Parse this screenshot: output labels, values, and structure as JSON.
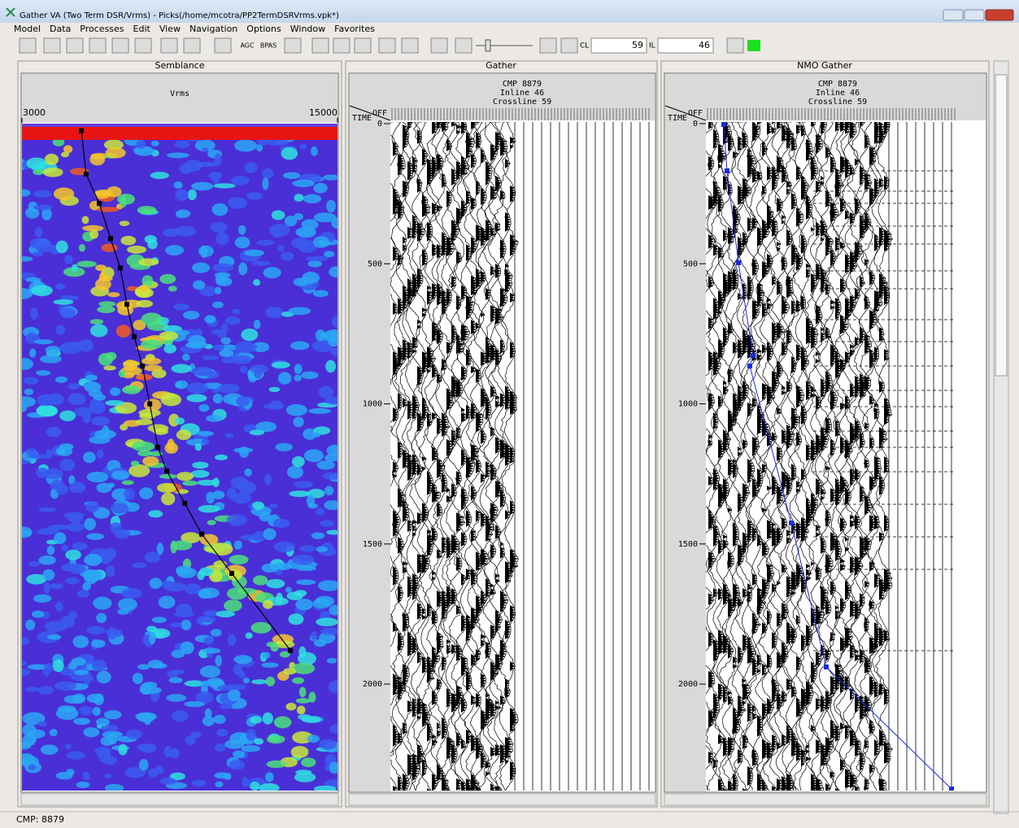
{
  "window": {
    "title": "Gather VA (Two Term DSR/Vrms) - Picks(/home/mcotra/PP2TermDSRVrms.vpk*)"
  },
  "menu": [
    "Model",
    "Data",
    "Processes",
    "Edit",
    "View",
    "Navigation",
    "Options",
    "Window",
    "Favorites"
  ],
  "toolbar": {
    "buttons": [
      "AGC",
      "BPAS"
    ],
    "cl_label": "CL",
    "cl_value": "59",
    "il_label": "IL",
    "il_value": "46"
  },
  "semblance": {
    "title": "Semblance",
    "axis_label": "Vrms",
    "xlim": [
      3000,
      15000
    ],
    "xticks": [
      3000,
      15000
    ],
    "ylim": [
      0,
      2380
    ],
    "picks": {
      "time_ms": [
        25,
        180,
        285,
        410,
        515,
        645,
        760,
        865,
        1000,
        1155,
        1240,
        1355,
        1465,
        1605,
        1880
      ],
      "vrms": [
        5260,
        5440,
        5940,
        6370,
        6740,
        6990,
        7270,
        7580,
        7860,
        8170,
        8510,
        9190,
        9840,
        10980,
        13210
      ]
    }
  },
  "gather": {
    "title": "Gather",
    "header": [
      "CMP 8879",
      "Inline 46",
      "Crossline 59"
    ],
    "off_label": "OFF",
    "time_label": "TIME",
    "yticks": [
      0,
      500,
      1000,
      1500,
      2000
    ]
  },
  "nmo_gather": {
    "title": "NMO Gather",
    "header": [
      "CMP 8879",
      "Inline 46",
      "Crossline 59"
    ],
    "off_label": "OFF",
    "time_label": "TIME",
    "yticks": [
      0,
      500,
      1000,
      1500,
      2000
    ]
  },
  "status": "CMP: 8879"
}
